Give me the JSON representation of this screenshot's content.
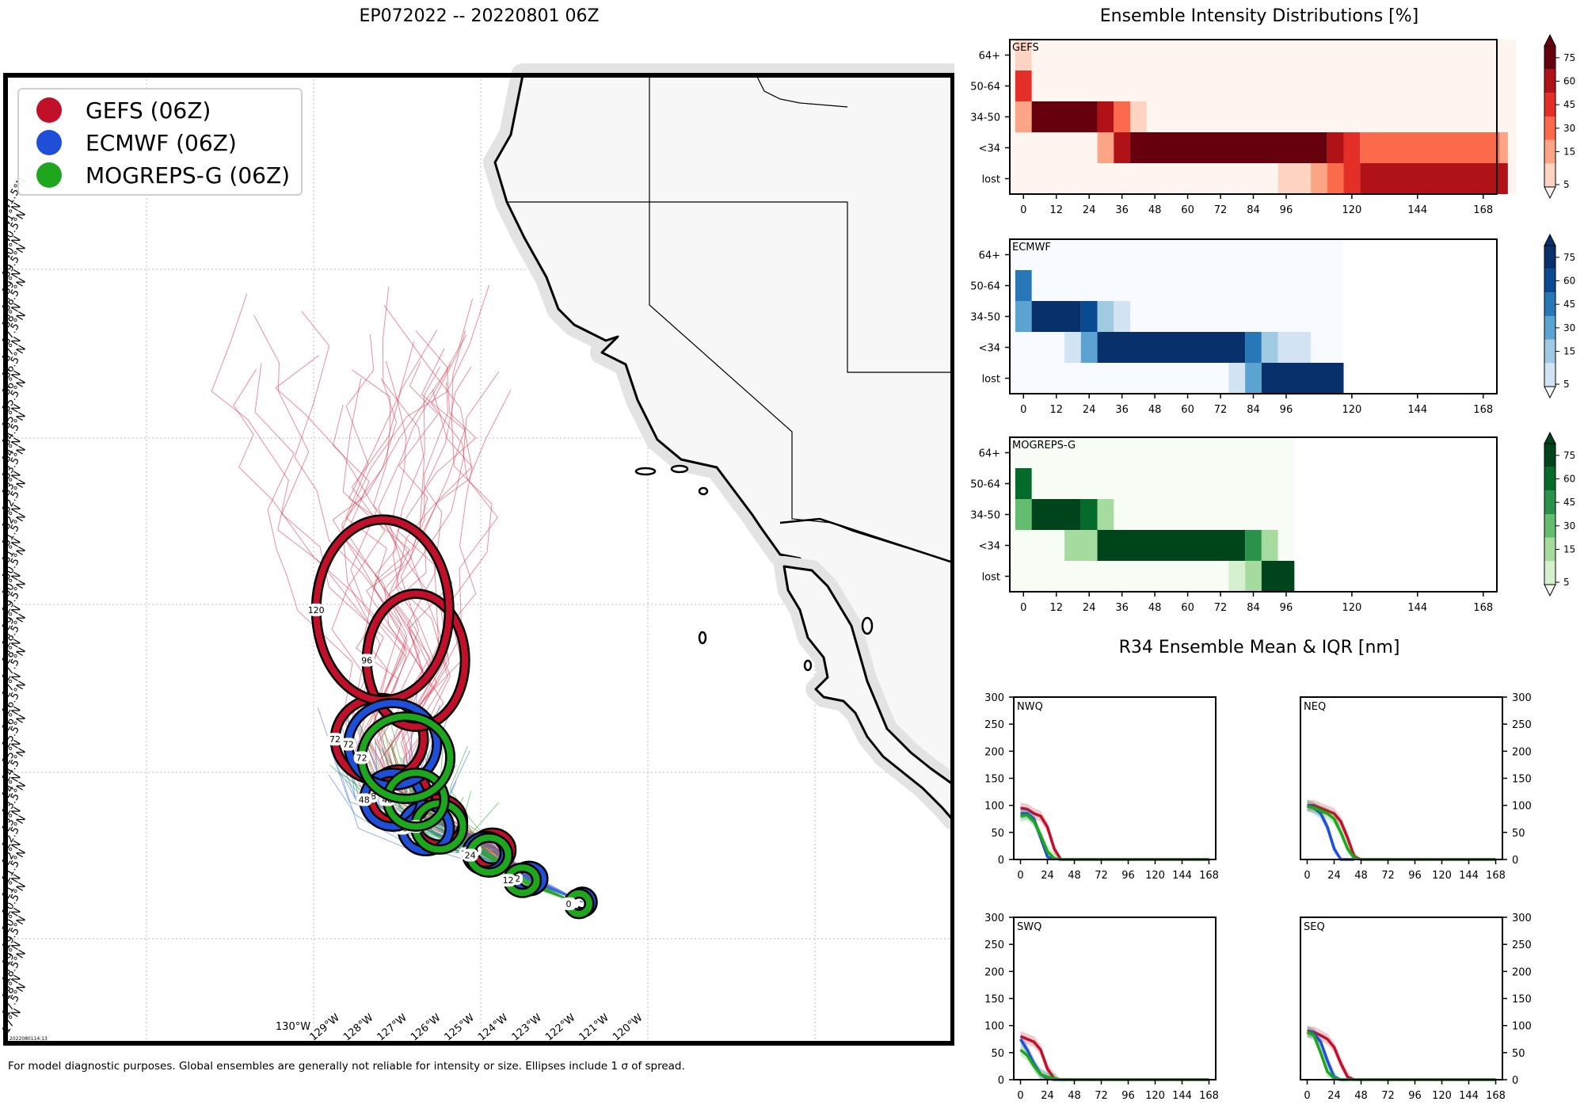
{
  "map": {
    "title": "EP072022 -- 20220801 06Z",
    "stamp": "2022080114:13",
    "footnote": "For model diagnostic purposes. Global ensembles are generally not reliable for intensity or size. Ellipses include 1 σ of spread.",
    "lon_labels": [
      "130°W",
      "129°W",
      "128°W",
      "127°W",
      "126°W",
      "125°W",
      "124°W",
      "123°W",
      "122°W",
      "121°W",
      "120°W"
    ],
    "lat_labels": [
      "17°N",
      "17.5°N",
      "18°N",
      "18.5°N",
      "19°N",
      "19.5°N",
      "20°N",
      "20.5°N",
      "21°N",
      "21.5°N",
      "22°N",
      "22.5°N",
      "23°N",
      "23.5°N",
      "24°N",
      "24.5°N",
      "25°N",
      "25.5°N",
      "26°N",
      "26.5°N",
      "27°N",
      "27.5°N",
      "28°N",
      "28.5°N",
      "29°N",
      "29.5°N",
      "30°N",
      "30.5°N",
      "31°N",
      "31.5°N",
      "32°N",
      "32.5°N",
      "33°N",
      "33.5°N",
      "34°N",
      "34.5°N",
      "35°N",
      "35.5°N",
      "36°N",
      "36.5°N",
      "37°N",
      "37.5°N",
      "38°N",
      "38.5°N",
      "39°N",
      "39.5°N",
      "40°N",
      "40.5°N",
      "41°N",
      "41.5°N"
    ],
    "legend": [
      {
        "label": "GEFS (06Z)",
        "color": "#c0102a"
      },
      {
        "label": "ECMWF (06Z)",
        "color": "#1f4fd8"
      },
      {
        "label": "MOGREPS-G (06Z)",
        "color": "#1ea71e"
      }
    ]
  },
  "chart_data": [
    {
      "type": "map",
      "title": "EP072022 -- 20220801 06Z",
      "ellipses": {
        "GEFS": [
          {
            "hour": "0",
            "lon": -121.9,
            "lat": 20.5
          },
          {
            "hour": "12",
            "lon": -123.5,
            "lat": 21.9
          },
          {
            "hour": "24",
            "lon": -124.6,
            "lat": 23.6
          },
          {
            "hour": "36",
            "lon": -126.2,
            "lat": 25.3
          },
          {
            "hour": "48",
            "lon": -127.4,
            "lat": 26.8
          },
          {
            "hour": "72",
            "lon": -128.0,
            "lat": 30.2
          },
          {
            "hour": "96",
            "lon": -126.9,
            "lat": 34.9
          },
          {
            "hour": "120",
            "lon": -127.9,
            "lat": 37.9
          }
        ],
        "ECMWF": [
          {
            "hour": "0",
            "lon": -121.9,
            "lat": 20.5
          },
          {
            "hour": "12",
            "lon": -123.5,
            "lat": 21.9
          },
          {
            "hour": "24",
            "lon": -124.8,
            "lat": 23.4
          },
          {
            "hour": "36",
            "lon": -126.6,
            "lat": 24.9
          },
          {
            "hour": "48",
            "lon": -127.6,
            "lat": 26.6
          },
          {
            "hour": "72",
            "lon": -127.6,
            "lat": 29.9
          }
        ],
        "MOGREPS-G": [
          {
            "hour": "0",
            "lon": -122.0,
            "lat": 20.4
          },
          {
            "hour": "12",
            "lon": -123.7,
            "lat": 21.8
          },
          {
            "hour": "24",
            "lon": -124.7,
            "lat": 23.3
          },
          {
            "hour": "36",
            "lon": -126.2,
            "lat": 25.0
          },
          {
            "hour": "48",
            "lon": -126.9,
            "lat": 26.6
          },
          {
            "hour": "72",
            "lon": -127.2,
            "lat": 29.1
          }
        ]
      }
    },
    {
      "type": "heatmap",
      "title": "Ensemble Intensity Distributions [%]",
      "hours": [
        0,
        12,
        24,
        36,
        48,
        60,
        72,
        84,
        96,
        120,
        144,
        168
      ],
      "rows": [
        "64+",
        "50-64",
        "34-50",
        "<34",
        "lost"
      ],
      "colorbar_ticks": [
        5,
        15,
        30,
        45,
        60,
        75
      ],
      "panels": [
        {
          "name": "GEFS",
          "palette": [
            "#fff5f0",
            "#fdd4c2",
            "#fca486",
            "#fb6b4b",
            "#e32f27",
            "#b11218",
            "#67000d"
          ],
          "extent_hours": 180,
          "cells": [
            {
              "row": "64+",
              "t0": -3,
              "t1": 3,
              "v": 10
            },
            {
              "row": "50-64",
              "t0": -3,
              "t1": 3,
              "v": 55
            },
            {
              "row": "34-50",
              "t0": -3,
              "t1": 3,
              "v": 20
            },
            {
              "row": "34-50",
              "t0": 3,
              "t1": 27,
              "v": 85
            },
            {
              "row": "34-50",
              "t0": 27,
              "t1": 33,
              "v": 60
            },
            {
              "row": "34-50",
              "t0": 33,
              "t1": 39,
              "v": 30
            },
            {
              "row": "34-50",
              "t0": 39,
              "t1": 45,
              "v": 8
            },
            {
              "row": "<34",
              "t0": 27,
              "t1": 33,
              "v": 20
            },
            {
              "row": "<34",
              "t0": 33,
              "t1": 39,
              "v": 65
            },
            {
              "row": "<34",
              "t0": 39,
              "t1": 111,
              "v": 85
            },
            {
              "row": "<34",
              "t0": 111,
              "t1": 117,
              "v": 60
            },
            {
              "row": "<34",
              "t0": 117,
              "t1": 123,
              "v": 45
            },
            {
              "row": "<34",
              "t0": 123,
              "t1": 174,
              "v": 30
            },
            {
              "row": "<34",
              "t0": 174,
              "t1": 177,
              "v": 20
            },
            {
              "row": "lost",
              "t0": 93,
              "t1": 105,
              "v": 8
            },
            {
              "row": "lost",
              "t0": 105,
              "t1": 111,
              "v": 20
            },
            {
              "row": "lost",
              "t0": 111,
              "t1": 117,
              "v": 35
            },
            {
              "row": "lost",
              "t0": 117,
              "t1": 123,
              "v": 50
            },
            {
              "row": "lost",
              "t0": 123,
              "t1": 177,
              "v": 62
            }
          ]
        },
        {
          "name": "ECMWF",
          "palette": [
            "#f7fbff",
            "#d2e3f3",
            "#a0cae1",
            "#5ba3d0",
            "#2878b8",
            "#0a4a91",
            "#08306b"
          ],
          "extent_hours": 117,
          "cells": [
            {
              "row": "50-64",
              "t0": -3,
              "t1": 3,
              "v": 50
            },
            {
              "row": "34-50",
              "t0": -3,
              "t1": 3,
              "v": 35
            },
            {
              "row": "34-50",
              "t0": 3,
              "t1": 21,
              "v": 85
            },
            {
              "row": "34-50",
              "t0": 21,
              "t1": 27,
              "v": 62
            },
            {
              "row": "34-50",
              "t0": 27,
              "t1": 33,
              "v": 22
            },
            {
              "row": "34-50",
              "t0": 33,
              "t1": 39,
              "v": 10
            },
            {
              "row": "<34",
              "t0": 15,
              "t1": 21,
              "v": 12
            },
            {
              "row": "<34",
              "t0": 21,
              "t1": 27,
              "v": 35
            },
            {
              "row": "<34",
              "t0": 27,
              "t1": 81,
              "v": 85
            },
            {
              "row": "<34",
              "t0": 81,
              "t1": 87,
              "v": 50
            },
            {
              "row": "<34",
              "t0": 87,
              "t1": 93,
              "v": 22
            },
            {
              "row": "<34",
              "t0": 93,
              "t1": 105,
              "v": 10
            },
            {
              "row": "lost",
              "t0": 75,
              "t1": 81,
              "v": 10
            },
            {
              "row": "lost",
              "t0": 81,
              "t1": 87,
              "v": 30
            },
            {
              "row": "lost",
              "t0": 87,
              "t1": 117,
              "v": 85
            }
          ]
        },
        {
          "name": "MOGREPS-G",
          "palette": [
            "#f7fcf5",
            "#d5efcf",
            "#a5db9f",
            "#64bc6e",
            "#2a924a",
            "#056b2a",
            "#00441b"
          ],
          "extent_hours": 99,
          "cells": [
            {
              "row": "50-64",
              "t0": -3,
              "t1": 3,
              "v": 62
            },
            {
              "row": "34-50",
              "t0": -3,
              "t1": 3,
              "v": 35
            },
            {
              "row": "34-50",
              "t0": 3,
              "t1": 21,
              "v": 85
            },
            {
              "row": "34-50",
              "t0": 21,
              "t1": 27,
              "v": 60
            },
            {
              "row": "34-50",
              "t0": 27,
              "t1": 33,
              "v": 20
            },
            {
              "row": "<34",
              "t0": 15,
              "t1": 27,
              "v": 20
            },
            {
              "row": "<34",
              "t0": 27,
              "t1": 81,
              "v": 85
            },
            {
              "row": "<34",
              "t0": 81,
              "t1": 87,
              "v": 45
            },
            {
              "row": "<34",
              "t0": 87,
              "t1": 93,
              "v": 20
            },
            {
              "row": "lost",
              "t0": 75,
              "t1": 81,
              "v": 8
            },
            {
              "row": "lost",
              "t0": 81,
              "t1": 87,
              "v": 25
            },
            {
              "row": "lost",
              "t0": 87,
              "t1": 99,
              "v": 85
            }
          ]
        }
      ]
    },
    {
      "type": "line",
      "title": "R34 Ensemble Mean & IQR [nm]",
      "x_ticks": [
        0,
        24,
        48,
        72,
        96,
        120,
        144,
        168
      ],
      "y_ticks": [
        0,
        50,
        100,
        150,
        200,
        250,
        300
      ],
      "ylim": [
        0,
        300
      ],
      "panels": [
        {
          "name": "NWQ",
          "series": [
            {
              "color": "#c0102a",
              "x": [
                0,
                6,
                12,
                18,
                24,
                30,
                36,
                48,
                72,
                96,
                120,
                144,
                168
              ],
              "y": [
                95,
                93,
                85,
                80,
                60,
                20,
                0,
                0,
                0,
                0,
                0,
                0,
                0
              ]
            },
            {
              "color": "#1f4fd8",
              "x": [
                0,
                6,
                12,
                18,
                24,
                30
              ],
              "y": [
                85,
                85,
                75,
                40,
                5,
                0
              ]
            },
            {
              "color": "#1ea71e",
              "x": [
                0,
                6,
                12,
                18,
                24,
                30,
                36,
                48,
                72,
                96,
                120,
                144,
                168
              ],
              "y": [
                80,
                82,
                70,
                45,
                15,
                2,
                0,
                0,
                0,
                0,
                0,
                0,
                0
              ]
            }
          ]
        },
        {
          "name": "NEQ",
          "series": [
            {
              "color": "#c0102a",
              "x": [
                0,
                6,
                12,
                18,
                24,
                30,
                36,
                42,
                48,
                72,
                96,
                120,
                144,
                168
              ],
              "y": [
                100,
                100,
                95,
                90,
                85,
                70,
                40,
                5,
                0,
                0,
                0,
                0,
                0,
                0
              ]
            },
            {
              "color": "#1f4fd8",
              "x": [
                0,
                6,
                12,
                18,
                24,
                30,
                36,
                42
              ],
              "y": [
                100,
                95,
                85,
                60,
                20,
                0,
                0,
                0
              ]
            },
            {
              "color": "#1ea71e",
              "x": [
                0,
                6,
                12,
                18,
                24,
                30,
                36,
                42,
                48,
                72,
                96,
                120,
                144,
                168
              ],
              "y": [
                98,
                95,
                90,
                85,
                75,
                50,
                20,
                2,
                0,
                0,
                0,
                0,
                0,
                0
              ]
            }
          ]
        },
        {
          "name": "SWQ",
          "series": [
            {
              "color": "#c0102a",
              "x": [
                0,
                6,
                12,
                18,
                24,
                30,
                36,
                48,
                72,
                96,
                120,
                144,
                168
              ],
              "y": [
                80,
                75,
                70,
                55,
                20,
                2,
                0,
                0,
                0,
                0,
                0,
                0,
                0
              ]
            },
            {
              "color": "#1f4fd8",
              "x": [
                0,
                6,
                12,
                18,
                24,
                30,
                36,
                48
              ],
              "y": [
                75,
                55,
                30,
                10,
                2,
                0,
                0,
                0
              ]
            },
            {
              "color": "#1ea71e",
              "x": [
                0,
                6,
                12,
                18,
                24,
                30,
                36,
                48,
                72,
                96,
                120,
                144,
                168
              ],
              "y": [
                55,
                45,
                25,
                10,
                5,
                2,
                0,
                0,
                0,
                0,
                0,
                0,
                0
              ]
            }
          ]
        },
        {
          "name": "SEQ",
          "series": [
            {
              "color": "#c0102a",
              "x": [
                0,
                6,
                12,
                18,
                24,
                30,
                36,
                42,
                48,
                72,
                96,
                120,
                144,
                168
              ],
              "y": [
                90,
                88,
                82,
                75,
                60,
                30,
                5,
                0,
                0,
                0,
                0,
                0,
                0,
                0
              ]
            },
            {
              "color": "#1f4fd8",
              "x": [
                0,
                6,
                12,
                18,
                24,
                30,
                36
              ],
              "y": [
                88,
                85,
                70,
                35,
                5,
                0,
                0
              ]
            },
            {
              "color": "#1ea71e",
              "x": [
                0,
                6,
                12,
                18,
                24,
                30,
                36,
                48,
                72,
                96,
                120,
                144,
                168
              ],
              "y": [
                88,
                82,
                50,
                15,
                2,
                0,
                0,
                0,
                0,
                0,
                0,
                0,
                0
              ]
            }
          ]
        }
      ]
    }
  ]
}
